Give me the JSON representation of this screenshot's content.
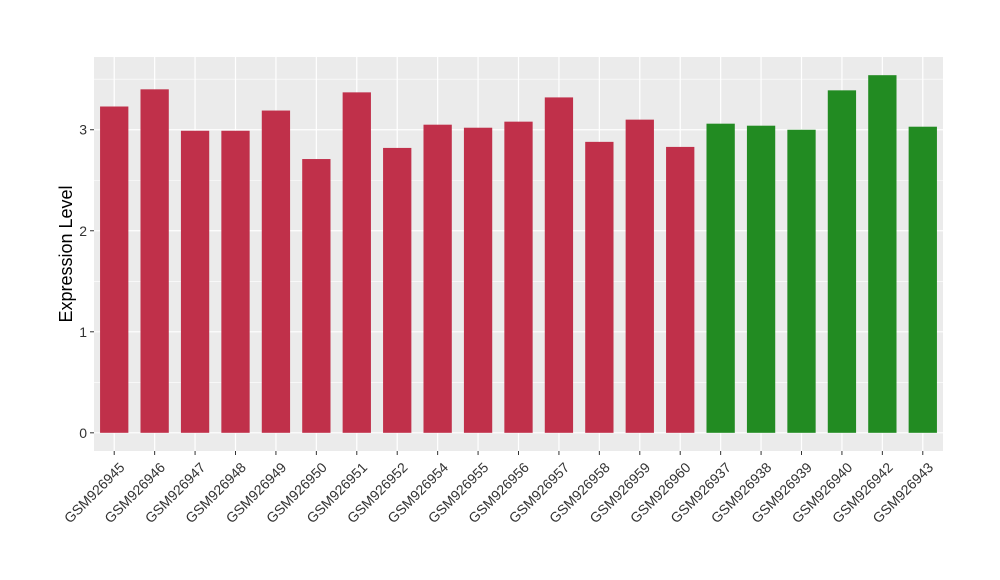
{
  "chart_data": {
    "type": "bar",
    "ylabel": "Expression Level",
    "xlabel": "",
    "ylim": [
      -0.18,
      3.72
    ],
    "yticks": [
      0,
      1,
      2,
      3
    ],
    "grid": true,
    "legend": "none",
    "categories": [
      "GSM926945",
      "GSM926946",
      "GSM926947",
      "GSM926948",
      "GSM926949",
      "GSM926950",
      "GSM926951",
      "GSM926952",
      "GSM926954",
      "GSM926955",
      "GSM926956",
      "GSM926957",
      "GSM926958",
      "GSM926959",
      "GSM926960",
      "GSM926937",
      "GSM926938",
      "GSM926939",
      "GSM926940",
      "GSM926942",
      "GSM926943"
    ],
    "values": [
      3.23,
      3.4,
      2.99,
      2.99,
      3.19,
      2.71,
      3.37,
      2.82,
      3.05,
      3.02,
      3.08,
      3.32,
      2.88,
      3.1,
      2.83,
      3.06,
      3.04,
      3.0,
      3.39,
      3.54,
      3.03
    ],
    "groups": [
      0,
      0,
      0,
      0,
      0,
      0,
      0,
      0,
      0,
      0,
      0,
      0,
      0,
      0,
      0,
      1,
      1,
      1,
      1,
      1,
      1
    ],
    "colors": [
      "#C0304A",
      "#228B22"
    ],
    "panel_background": "#EBEBEB",
    "grid_color": "#FFFFFF"
  }
}
